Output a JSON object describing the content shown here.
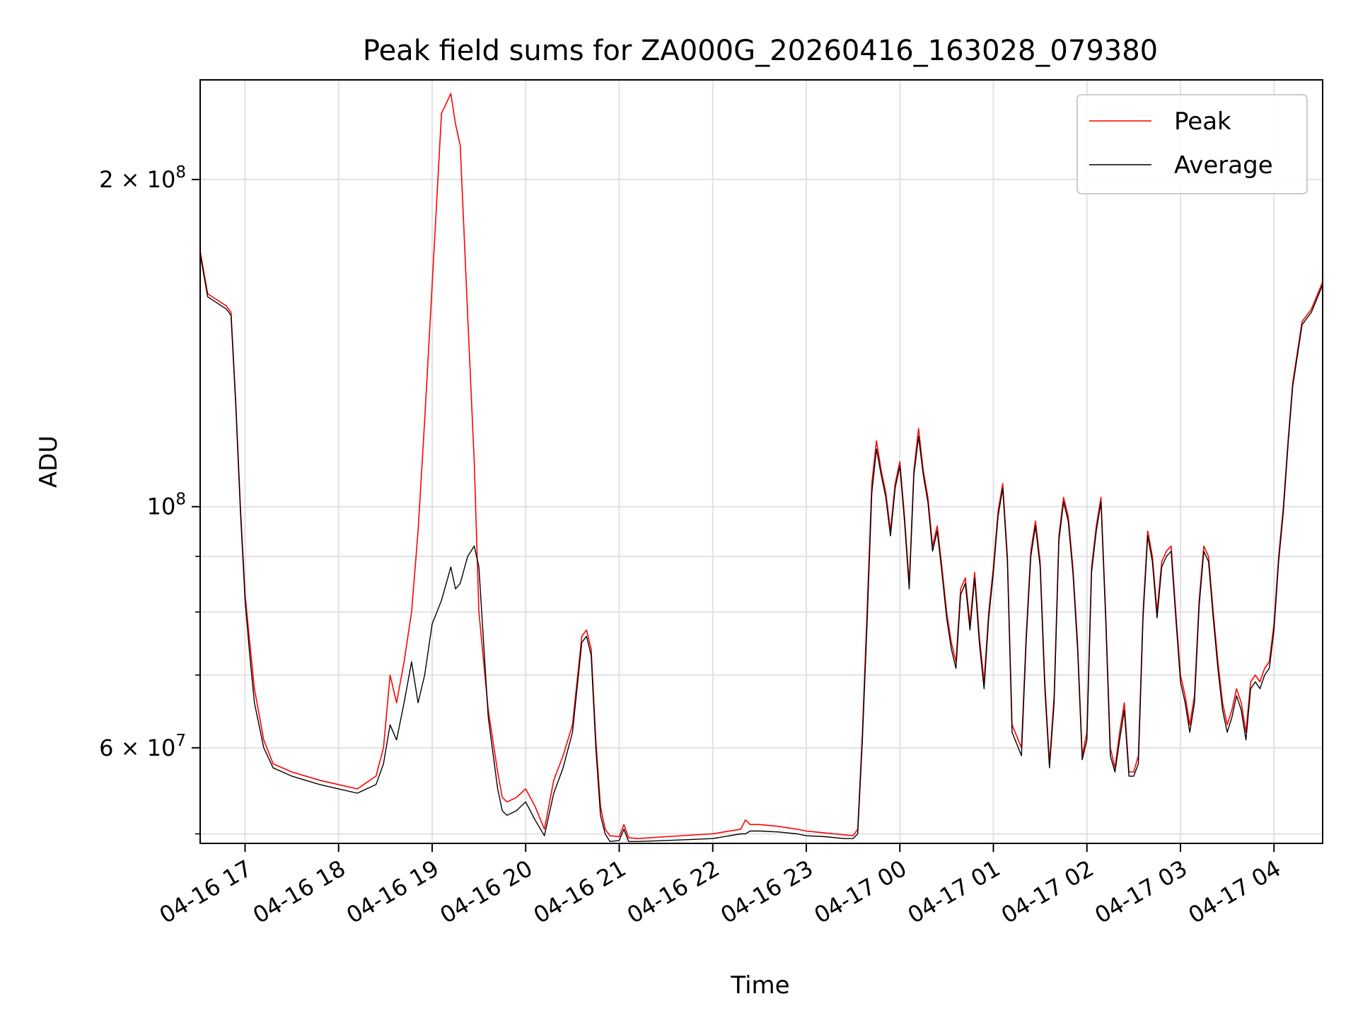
{
  "chart_data": {
    "type": "line",
    "title": "Peak field sums for ZA000G_20260416_163028_079380",
    "xlabel": "Time",
    "ylabel": "ADU",
    "yscale": "log",
    "grid": true,
    "legend_position": "top-right",
    "xlim": [
      16.52,
      28.52
    ],
    "ylim": [
      49000000,
      247000000
    ],
    "x_unit": "hours since 2026-04-16 00:00",
    "x_ticks": [
      {
        "x": 17,
        "label": "04-16 17"
      },
      {
        "x": 18,
        "label": "04-16 18"
      },
      {
        "x": 19,
        "label": "04-16 19"
      },
      {
        "x": 20,
        "label": "04-16 20"
      },
      {
        "x": 21,
        "label": "04-16 21"
      },
      {
        "x": 22,
        "label": "04-16 22"
      },
      {
        "x": 23,
        "label": "04-16 23"
      },
      {
        "x": 24,
        "label": "04-17 00"
      },
      {
        "x": 25,
        "label": "04-17 01"
      },
      {
        "x": 26,
        "label": "04-17 02"
      },
      {
        "x": 27,
        "label": "04-17 03"
      },
      {
        "x": 28,
        "label": "04-17 04"
      }
    ],
    "y_ticks_major": [
      {
        "value": 60000000,
        "base": "6 × 10",
        "exp": "7"
      },
      {
        "value": 100000000,
        "base": "10",
        "exp": "8"
      },
      {
        "value": 200000000,
        "base": "2 × 10",
        "exp": "8"
      }
    ],
    "y_ticks_minor": [
      50000000,
      70000000,
      80000000,
      90000000
    ],
    "series": [
      {
        "name": "Peak",
        "color": "#ff0000",
        "x": [
          16.52,
          16.55,
          16.6,
          16.8,
          16.85,
          16.9,
          16.95,
          17.0,
          17.05,
          17.1,
          17.2,
          17.3,
          17.5,
          17.8,
          18.0,
          18.2,
          18.4,
          18.48,
          18.55,
          18.62,
          18.7,
          18.78,
          18.85,
          18.92,
          19.0,
          19.1,
          19.2,
          19.25,
          19.3,
          19.38,
          19.45,
          19.5,
          19.6,
          19.7,
          19.75,
          19.8,
          19.9,
          20.0,
          20.1,
          20.2,
          20.3,
          20.4,
          20.5,
          20.6,
          20.65,
          20.7,
          20.75,
          20.8,
          20.85,
          20.9,
          21.0,
          21.05,
          21.1,
          21.2,
          21.5,
          22.0,
          22.3,
          22.35,
          22.4,
          22.5,
          22.7,
          22.9,
          23.0,
          23.2,
          23.4,
          23.5,
          23.55,
          23.6,
          23.65,
          23.7,
          23.75,
          23.8,
          23.85,
          23.9,
          23.95,
          24.0,
          24.05,
          24.1,
          24.15,
          24.2,
          24.25,
          24.3,
          24.35,
          24.4,
          24.45,
          24.5,
          24.55,
          24.6,
          24.65,
          24.7,
          24.75,
          24.8,
          24.85,
          24.9,
          24.95,
          25.0,
          25.05,
          25.1,
          25.15,
          25.2,
          25.3,
          25.35,
          25.4,
          25.45,
          25.5,
          25.55,
          25.6,
          25.65,
          25.7,
          25.75,
          25.8,
          25.85,
          25.9,
          25.95,
          26.0,
          26.05,
          26.1,
          26.15,
          26.2,
          26.25,
          26.3,
          26.35,
          26.4,
          26.45,
          26.5,
          26.55,
          26.6,
          26.65,
          26.7,
          26.75,
          26.8,
          26.85,
          26.9,
          26.95,
          27.0,
          27.05,
          27.1,
          27.15,
          27.2,
          27.25,
          27.3,
          27.35,
          27.4,
          27.45,
          27.5,
          27.55,
          27.6,
          27.65,
          27.7,
          27.75,
          27.8,
          27.85,
          27.9,
          27.95,
          28.0,
          28.05,
          28.1,
          28.15,
          28.2,
          28.3,
          28.4,
          28.52
        ],
        "y": [
          172000000,
          166000000,
          157000000,
          153000000,
          151000000,
          125000000,
          100000000,
          83000000,
          75000000,
          68000000,
          61000000,
          58000000,
          57000000,
          56000000,
          55500000,
          55000000,
          56500000,
          60000000,
          70000000,
          66000000,
          72000000,
          80000000,
          95000000,
          120000000,
          160000000,
          230000000,
          240000000,
          225000000,
          215000000,
          150000000,
          110000000,
          80000000,
          65000000,
          57000000,
          54000000,
          53500000,
          54000000,
          55000000,
          53000000,
          50500000,
          56000000,
          59000000,
          63000000,
          76000000,
          77000000,
          74000000,
          61000000,
          53000000,
          50500000,
          49800000,
          49700000,
          51000000,
          49600000,
          49500000,
          49700000,
          50000000,
          50500000,
          51500000,
          51000000,
          51000000,
          50800000,
          50500000,
          50300000,
          50100000,
          49900000,
          49800000,
          50500000,
          62000000,
          80000000,
          105000000,
          115000000,
          108000000,
          103000000,
          95000000,
          105000000,
          110000000,
          98000000,
          85000000,
          108000000,
          118000000,
          108000000,
          102000000,
          92000000,
          96000000,
          88000000,
          80000000,
          75000000,
          72000000,
          84000000,
          86000000,
          78000000,
          87000000,
          76000000,
          69000000,
          80000000,
          88000000,
          99000000,
          105000000,
          90000000,
          63000000,
          60000000,
          76000000,
          91000000,
          97000000,
          89000000,
          69000000,
          58000000,
          67000000,
          94000000,
          102000000,
          98000000,
          88000000,
          75000000,
          59000000,
          62000000,
          88000000,
          96000000,
          102000000,
          80000000,
          60000000,
          57500000,
          62000000,
          66000000,
          57000000,
          57000000,
          59000000,
          80000000,
          95000000,
          90000000,
          80000000,
          89000000,
          91000000,
          92000000,
          80000000,
          70000000,
          67000000,
          63000000,
          67000000,
          82000000,
          92000000,
          90000000,
          80000000,
          72000000,
          66000000,
          63000000,
          65000000,
          68000000,
          66000000,
          62000000,
          69000000,
          70000000,
          69000000,
          71000000,
          72000000,
          78000000,
          90000000,
          100000000,
          115000000,
          130000000,
          148000000,
          152000000,
          161000000
        ]
      },
      {
        "name": "Average",
        "color": "#000000",
        "x": [
          16.52,
          16.55,
          16.6,
          16.8,
          16.85,
          16.9,
          16.95,
          17.0,
          17.05,
          17.1,
          17.2,
          17.3,
          17.5,
          17.8,
          18.0,
          18.2,
          18.4,
          18.48,
          18.55,
          18.62,
          18.7,
          18.78,
          18.85,
          18.92,
          19.0,
          19.1,
          19.2,
          19.25,
          19.3,
          19.38,
          19.45,
          19.5,
          19.6,
          19.7,
          19.75,
          19.8,
          19.9,
          20.0,
          20.1,
          20.2,
          20.3,
          20.4,
          20.5,
          20.6,
          20.65,
          20.7,
          20.75,
          20.8,
          20.85,
          20.9,
          21.0,
          21.05,
          21.1,
          21.2,
          21.5,
          22.0,
          22.3,
          22.35,
          22.4,
          22.5,
          22.7,
          22.9,
          23.0,
          23.2,
          23.4,
          23.5,
          23.55,
          23.6,
          23.65,
          23.7,
          23.75,
          23.8,
          23.85,
          23.9,
          23.95,
          24.0,
          24.05,
          24.1,
          24.15,
          24.2,
          24.25,
          24.3,
          24.35,
          24.4,
          24.45,
          24.5,
          24.55,
          24.6,
          24.65,
          24.7,
          24.75,
          24.8,
          24.85,
          24.9,
          24.95,
          25.0,
          25.05,
          25.1,
          25.15,
          25.2,
          25.3,
          25.35,
          25.4,
          25.45,
          25.5,
          25.55,
          25.6,
          25.65,
          25.7,
          25.75,
          25.8,
          25.85,
          25.9,
          25.95,
          26.0,
          26.05,
          26.1,
          26.15,
          26.2,
          26.25,
          26.3,
          26.35,
          26.4,
          26.45,
          26.5,
          26.55,
          26.6,
          26.65,
          26.7,
          26.75,
          26.8,
          26.85,
          26.9,
          26.95,
          27.0,
          27.05,
          27.1,
          27.15,
          27.2,
          27.25,
          27.3,
          27.35,
          27.4,
          27.45,
          27.5,
          27.55,
          27.6,
          27.65,
          27.7,
          27.75,
          27.8,
          27.85,
          27.9,
          27.95,
          28.0,
          28.05,
          28.1,
          28.15,
          28.2,
          28.3,
          28.4,
          28.52
        ],
        "y": [
          171000000,
          165000000,
          156000000,
          152000000,
          150000000,
          124000000,
          99000000,
          82000000,
          73000000,
          66000000,
          60000000,
          57500000,
          56500000,
          55500000,
          55000000,
          54500000,
          55500000,
          58000000,
          63000000,
          61000000,
          66000000,
          72000000,
          66000000,
          70000000,
          78000000,
          82000000,
          88000000,
          84000000,
          85000000,
          90000000,
          92000000,
          88000000,
          64000000,
          55000000,
          52500000,
          52000000,
          52500000,
          53500000,
          51500000,
          49800000,
          54500000,
          57500000,
          62000000,
          75000000,
          76000000,
          73000000,
          60000000,
          52000000,
          50000000,
          49200000,
          49300000,
          50500000,
          49200000,
          49200000,
          49300000,
          49500000,
          50000000,
          50000000,
          50300000,
          50300000,
          50200000,
          50000000,
          49800000,
          49700000,
          49500000,
          49500000,
          50000000,
          61000000,
          78000000,
          103000000,
          113000000,
          107000000,
          102000000,
          94000000,
          104000000,
          109000000,
          97000000,
          84000000,
          107000000,
          116000000,
          107000000,
          101000000,
          91000000,
          95000000,
          87000000,
          79000000,
          74000000,
          71000000,
          83000000,
          85000000,
          77000000,
          86000000,
          75000000,
          68000000,
          79000000,
          87000000,
          98000000,
          104000000,
          89000000,
          62000000,
          59000000,
          75000000,
          90000000,
          96000000,
          88000000,
          68000000,
          57500000,
          66000000,
          93000000,
          101000000,
          97000000,
          87000000,
          74000000,
          58500000,
          61000000,
          87000000,
          95000000,
          101000000,
          79000000,
          59000000,
          57000000,
          61000000,
          65000000,
          56500000,
          56500000,
          58000000,
          79000000,
          94000000,
          89000000,
          79000000,
          88000000,
          90000000,
          91000000,
          79000000,
          69000000,
          66000000,
          62000000,
          66000000,
          81000000,
          91000000,
          89000000,
          79000000,
          71000000,
          65000000,
          62000000,
          64000000,
          67000000,
          65000000,
          61000000,
          68000000,
          69000000,
          68000000,
          70000000,
          71000000,
          77000000,
          89000000,
          99000000,
          114000000,
          129000000,
          147000000,
          151000000,
          160000000
        ]
      }
    ]
  }
}
